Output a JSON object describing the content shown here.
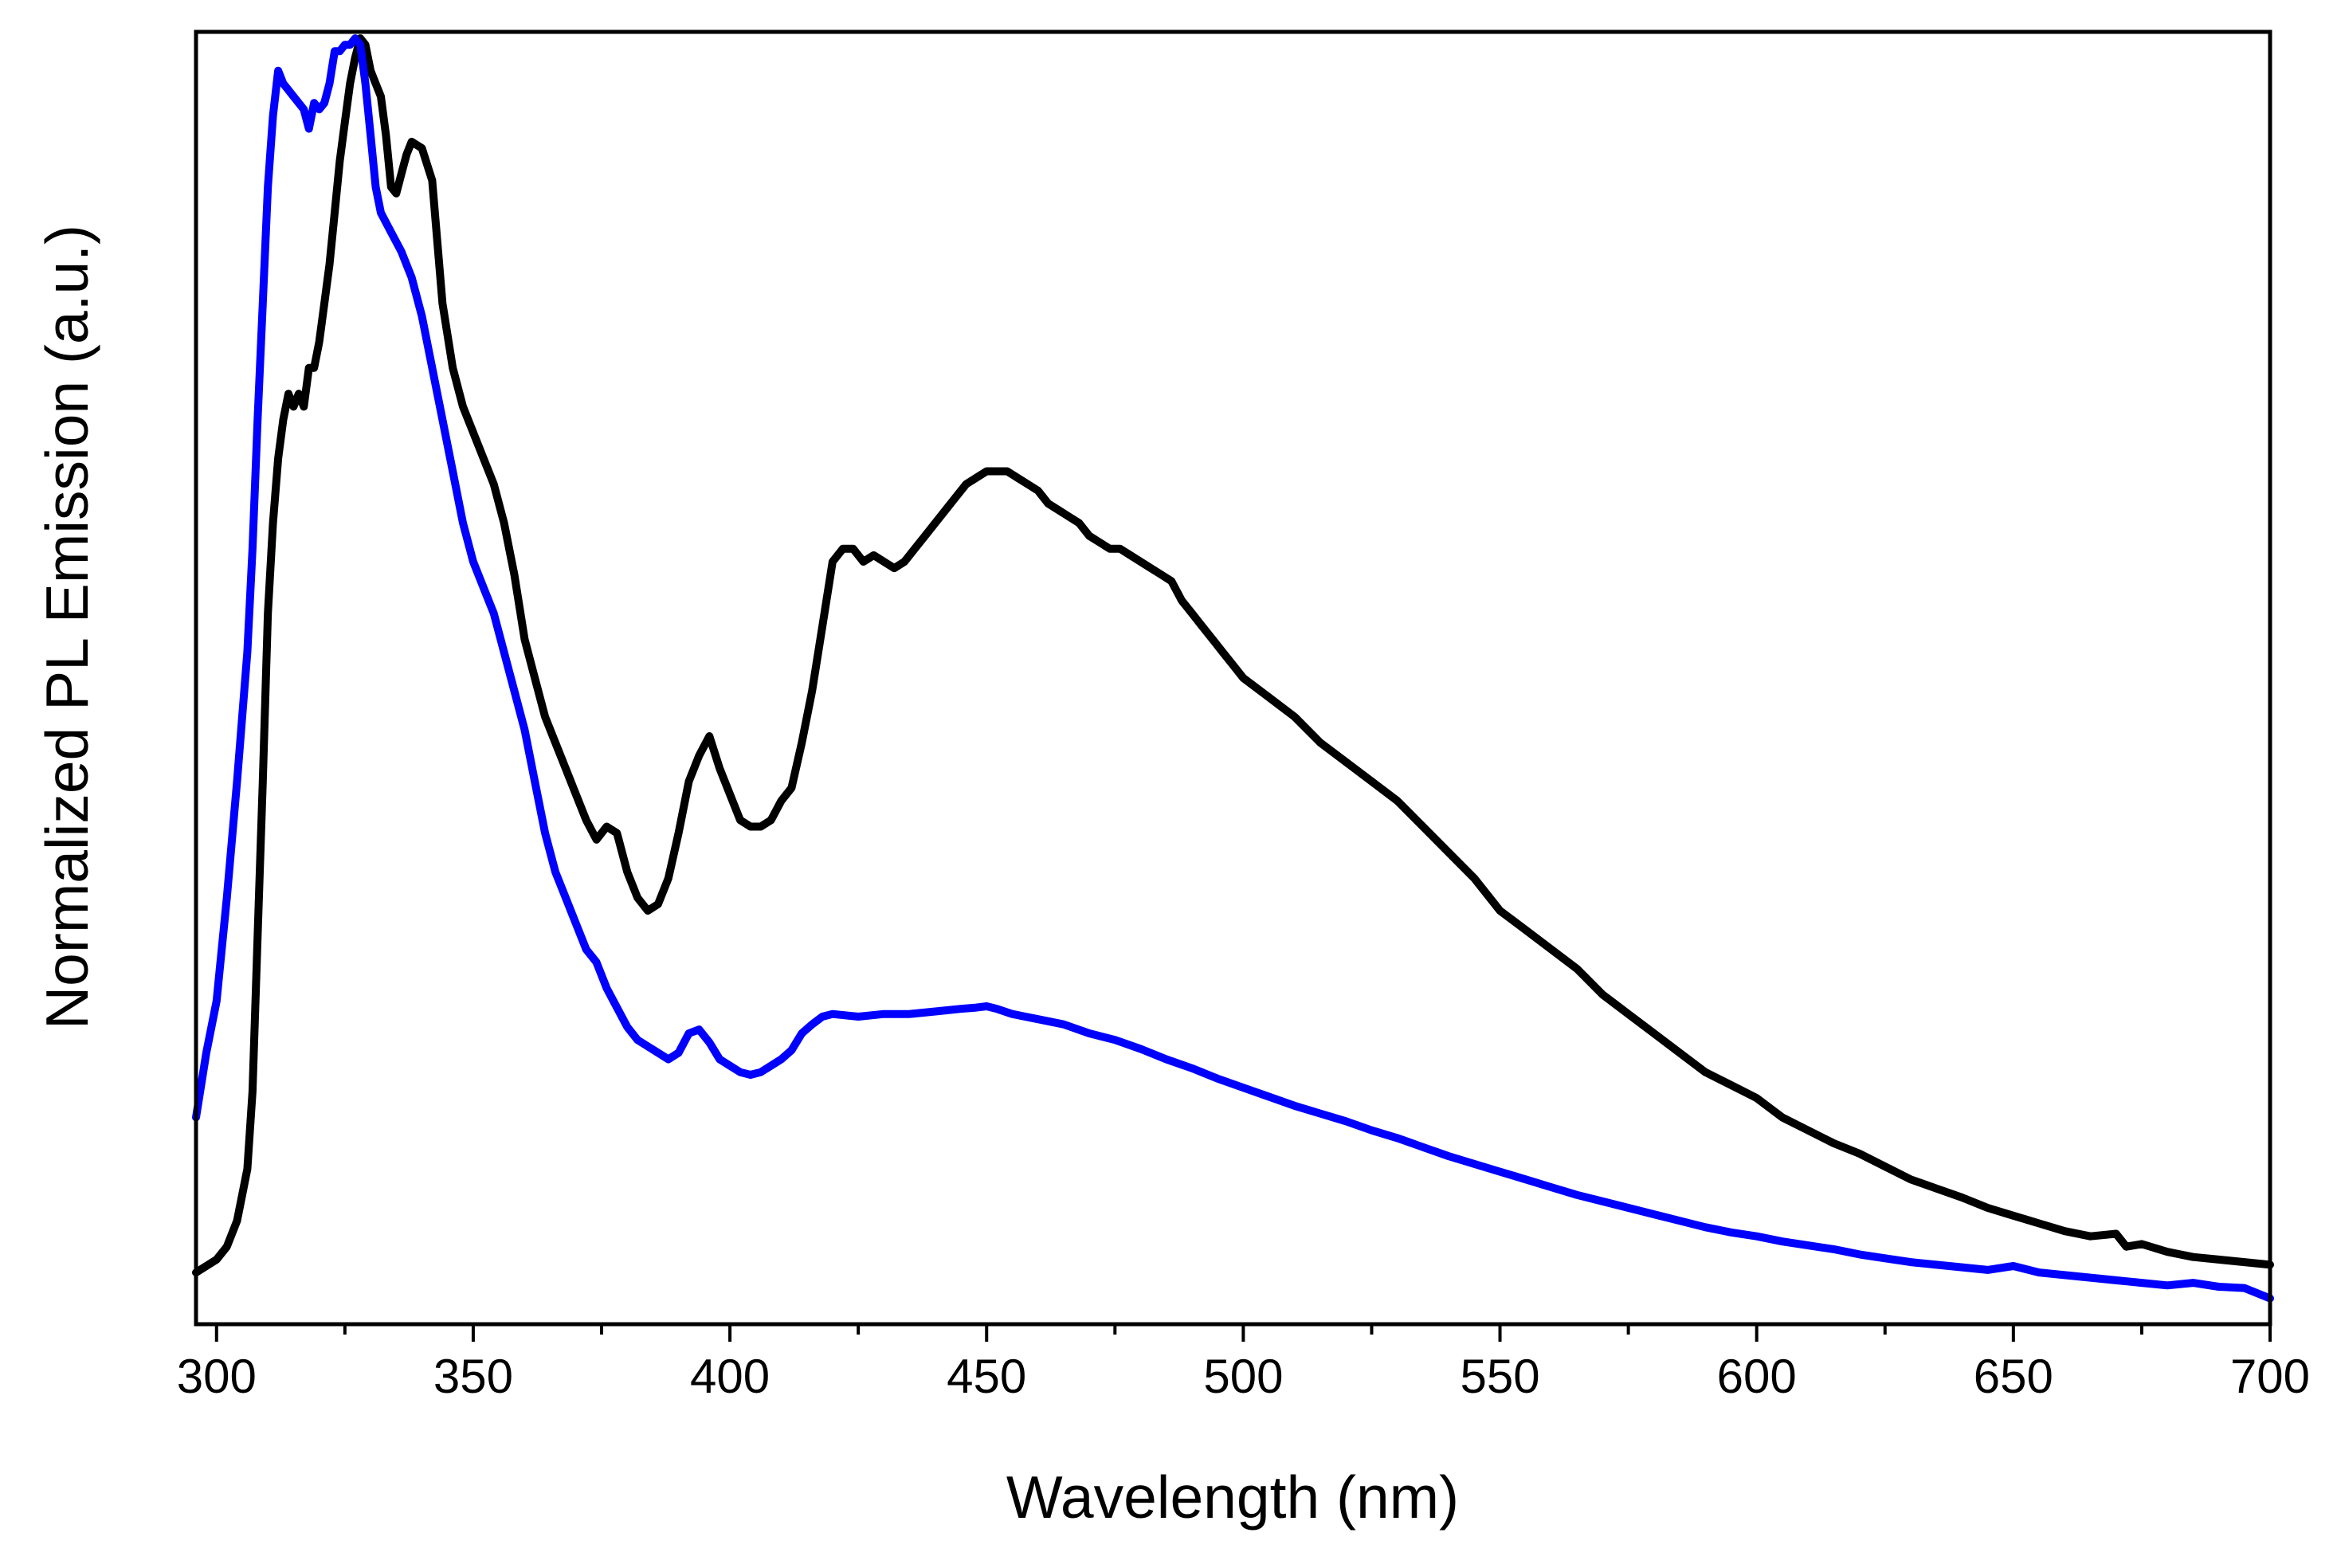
{
  "chart_data": {
    "type": "line",
    "title": "",
    "xlabel": "Wavelength (nm)",
    "ylabel": "Normalized PL Emission (a.u.)",
    "xlim": [
      296,
      700
    ],
    "ylim": [
      0,
      1.0
    ],
    "x_ticks": [
      300,
      350,
      400,
      450,
      500,
      550,
      600,
      650,
      700
    ],
    "x_minor_step": 25,
    "y_ticks_shown": false,
    "grid": false,
    "legend": "none",
    "series": [
      {
        "name": "Black trace",
        "color": "#000000",
        "points": [
          [
            296,
            0.04
          ],
          [
            298,
            0.045
          ],
          [
            300,
            0.05
          ],
          [
            302,
            0.06
          ],
          [
            304,
            0.08
          ],
          [
            306,
            0.12
          ],
          [
            307,
            0.18
          ],
          [
            308,
            0.3
          ],
          [
            309,
            0.42
          ],
          [
            310,
            0.55
          ],
          [
            311,
            0.62
          ],
          [
            312,
            0.67
          ],
          [
            313,
            0.7
          ],
          [
            314,
            0.72
          ],
          [
            315,
            0.71
          ],
          [
            316,
            0.72
          ],
          [
            317,
            0.71
          ],
          [
            318,
            0.74
          ],
          [
            319,
            0.74
          ],
          [
            320,
            0.76
          ],
          [
            321,
            0.79
          ],
          [
            322,
            0.82
          ],
          [
            323,
            0.86
          ],
          [
            324,
            0.9
          ],
          [
            325,
            0.93
          ],
          [
            326,
            0.96
          ],
          [
            327,
            0.98
          ],
          [
            328,
            0.995
          ],
          [
            329,
            0.99
          ],
          [
            330,
            0.97
          ],
          [
            331,
            0.96
          ],
          [
            332,
            0.95
          ],
          [
            333,
            0.92
          ],
          [
            334,
            0.88
          ],
          [
            335,
            0.875
          ],
          [
            336,
            0.89
          ],
          [
            337,
            0.905
          ],
          [
            338,
            0.915
          ],
          [
            340,
            0.91
          ],
          [
            342,
            0.885
          ],
          [
            344,
            0.79
          ],
          [
            346,
            0.74
          ],
          [
            348,
            0.71
          ],
          [
            350,
            0.69
          ],
          [
            352,
            0.67
          ],
          [
            354,
            0.65
          ],
          [
            356,
            0.62
          ],
          [
            358,
            0.58
          ],
          [
            360,
            0.53
          ],
          [
            362,
            0.5
          ],
          [
            364,
            0.47
          ],
          [
            366,
            0.45
          ],
          [
            368,
            0.43
          ],
          [
            370,
            0.41
          ],
          [
            372,
            0.39
          ],
          [
            374,
            0.375
          ],
          [
            376,
            0.385
          ],
          [
            378,
            0.38
          ],
          [
            380,
            0.35
          ],
          [
            382,
            0.33
          ],
          [
            384,
            0.32
          ],
          [
            386,
            0.325
          ],
          [
            388,
            0.345
          ],
          [
            390,
            0.38
          ],
          [
            392,
            0.42
          ],
          [
            394,
            0.44
          ],
          [
            396,
            0.455
          ],
          [
            398,
            0.43
          ],
          [
            400,
            0.41
          ],
          [
            402,
            0.39
          ],
          [
            404,
            0.385
          ],
          [
            406,
            0.385
          ],
          [
            408,
            0.39
          ],
          [
            410,
            0.405
          ],
          [
            412,
            0.415
          ],
          [
            414,
            0.45
          ],
          [
            416,
            0.49
          ],
          [
            418,
            0.54
          ],
          [
            420,
            0.59
          ],
          [
            422,
            0.6
          ],
          [
            424,
            0.6
          ],
          [
            426,
            0.59
          ],
          [
            428,
            0.595
          ],
          [
            430,
            0.59
          ],
          [
            432,
            0.585
          ],
          [
            434,
            0.59
          ],
          [
            436,
            0.6
          ],
          [
            438,
            0.61
          ],
          [
            440,
            0.62
          ],
          [
            442,
            0.63
          ],
          [
            444,
            0.64
          ],
          [
            446,
            0.65
          ],
          [
            448,
            0.655
          ],
          [
            450,
            0.66
          ],
          [
            452,
            0.66
          ],
          [
            454,
            0.66
          ],
          [
            456,
            0.655
          ],
          [
            458,
            0.65
          ],
          [
            460,
            0.645
          ],
          [
            462,
            0.635
          ],
          [
            464,
            0.63
          ],
          [
            466,
            0.625
          ],
          [
            468,
            0.62
          ],
          [
            470,
            0.61
          ],
          [
            472,
            0.605
          ],
          [
            474,
            0.6
          ],
          [
            476,
            0.6
          ],
          [
            478,
            0.595
          ],
          [
            480,
            0.59
          ],
          [
            482,
            0.585
          ],
          [
            484,
            0.58
          ],
          [
            486,
            0.575
          ],
          [
            488,
            0.56
          ],
          [
            490,
            0.55
          ],
          [
            492,
            0.54
          ],
          [
            494,
            0.53
          ],
          [
            496,
            0.52
          ],
          [
            498,
            0.51
          ],
          [
            500,
            0.5
          ],
          [
            505,
            0.485
          ],
          [
            510,
            0.47
          ],
          [
            515,
            0.45
          ],
          [
            520,
            0.435
          ],
          [
            525,
            0.42
          ],
          [
            530,
            0.405
          ],
          [
            535,
            0.385
          ],
          [
            540,
            0.365
          ],
          [
            545,
            0.345
          ],
          [
            550,
            0.32
          ],
          [
            555,
            0.305
          ],
          [
            560,
            0.29
          ],
          [
            565,
            0.275
          ],
          [
            570,
            0.255
          ],
          [
            575,
            0.24
          ],
          [
            580,
            0.225
          ],
          [
            585,
            0.21
          ],
          [
            590,
            0.195
          ],
          [
            595,
            0.185
          ],
          [
            600,
            0.175
          ],
          [
            605,
            0.16
          ],
          [
            610,
            0.15
          ],
          [
            615,
            0.14
          ],
          [
            620,
            0.132
          ],
          [
            625,
            0.122
          ],
          [
            630,
            0.112
          ],
          [
            635,
            0.105
          ],
          [
            640,
            0.098
          ],
          [
            645,
            0.09
          ],
          [
            650,
            0.084
          ],
          [
            655,
            0.078
          ],
          [
            660,
            0.072
          ],
          [
            665,
            0.068
          ],
          [
            670,
            0.07
          ],
          [
            672,
            0.06
          ],
          [
            675,
            0.062
          ],
          [
            680,
            0.056
          ],
          [
            685,
            0.052
          ],
          [
            690,
            0.05
          ],
          [
            695,
            0.048
          ],
          [
            700,
            0.046
          ]
        ]
      },
      {
        "name": "Blue trace",
        "color": "#0000ff",
        "points": [
          [
            296,
            0.16
          ],
          [
            298,
            0.21
          ],
          [
            300,
            0.25
          ],
          [
            302,
            0.33
          ],
          [
            304,
            0.42
          ],
          [
            306,
            0.52
          ],
          [
            307,
            0.6
          ],
          [
            308,
            0.7
          ],
          [
            309,
            0.79
          ],
          [
            310,
            0.88
          ],
          [
            311,
            0.935
          ],
          [
            312,
            0.97
          ],
          [
            313,
            0.96
          ],
          [
            314,
            0.955
          ],
          [
            315,
            0.95
          ],
          [
            316,
            0.945
          ],
          [
            317,
            0.94
          ],
          [
            318,
            0.925
          ],
          [
            319,
            0.945
          ],
          [
            320,
            0.94
          ],
          [
            321,
            0.945
          ],
          [
            322,
            0.96
          ],
          [
            323,
            0.985
          ],
          [
            324,
            0.985
          ],
          [
            325,
            0.99
          ],
          [
            326,
            0.99
          ],
          [
            327,
            0.995
          ],
          [
            328,
            0.99
          ],
          [
            329,
            0.96
          ],
          [
            330,
            0.92
          ],
          [
            331,
            0.88
          ],
          [
            332,
            0.86
          ],
          [
            334,
            0.845
          ],
          [
            336,
            0.83
          ],
          [
            338,
            0.81
          ],
          [
            340,
            0.78
          ],
          [
            342,
            0.74
          ],
          [
            344,
            0.7
          ],
          [
            346,
            0.66
          ],
          [
            348,
            0.62
          ],
          [
            350,
            0.59
          ],
          [
            352,
            0.57
          ],
          [
            354,
            0.55
          ],
          [
            356,
            0.52
          ],
          [
            358,
            0.49
          ],
          [
            360,
            0.46
          ],
          [
            362,
            0.42
          ],
          [
            364,
            0.38
          ],
          [
            366,
            0.35
          ],
          [
            368,
            0.33
          ],
          [
            370,
            0.31
          ],
          [
            372,
            0.29
          ],
          [
            374,
            0.28
          ],
          [
            376,
            0.26
          ],
          [
            378,
            0.245
          ],
          [
            380,
            0.23
          ],
          [
            382,
            0.22
          ],
          [
            384,
            0.215
          ],
          [
            386,
            0.21
          ],
          [
            388,
            0.205
          ],
          [
            390,
            0.21
          ],
          [
            392,
            0.225
          ],
          [
            394,
            0.228
          ],
          [
            396,
            0.218
          ],
          [
            398,
            0.205
          ],
          [
            400,
            0.2
          ],
          [
            402,
            0.195
          ],
          [
            404,
            0.193
          ],
          [
            406,
            0.195
          ],
          [
            408,
            0.2
          ],
          [
            410,
            0.205
          ],
          [
            412,
            0.212
          ],
          [
            414,
            0.225
          ],
          [
            416,
            0.232
          ],
          [
            418,
            0.238
          ],
          [
            420,
            0.24
          ],
          [
            425,
            0.238
          ],
          [
            430,
            0.24
          ],
          [
            435,
            0.24
          ],
          [
            440,
            0.242
          ],
          [
            445,
            0.244
          ],
          [
            448,
            0.245
          ],
          [
            450,
            0.246
          ],
          [
            452,
            0.244
          ],
          [
            455,
            0.24
          ],
          [
            460,
            0.236
          ],
          [
            465,
            0.232
          ],
          [
            470,
            0.225
          ],
          [
            475,
            0.22
          ],
          [
            480,
            0.213
          ],
          [
            485,
            0.205
          ],
          [
            490,
            0.198
          ],
          [
            495,
            0.19
          ],
          [
            500,
            0.183
          ],
          [
            505,
            0.176
          ],
          [
            510,
            0.169
          ],
          [
            515,
            0.163
          ],
          [
            520,
            0.157
          ],
          [
            525,
            0.15
          ],
          [
            530,
            0.144
          ],
          [
            535,
            0.137
          ],
          [
            540,
            0.13
          ],
          [
            545,
            0.124
          ],
          [
            550,
            0.118
          ],
          [
            555,
            0.112
          ],
          [
            560,
            0.106
          ],
          [
            565,
            0.1
          ],
          [
            570,
            0.095
          ],
          [
            575,
            0.09
          ],
          [
            580,
            0.085
          ],
          [
            585,
            0.08
          ],
          [
            590,
            0.075
          ],
          [
            595,
            0.071
          ],
          [
            600,
            0.068
          ],
          [
            605,
            0.064
          ],
          [
            610,
            0.061
          ],
          [
            615,
            0.058
          ],
          [
            620,
            0.054
          ],
          [
            625,
            0.051
          ],
          [
            630,
            0.048
          ],
          [
            635,
            0.046
          ],
          [
            640,
            0.044
          ],
          [
            645,
            0.042
          ],
          [
            650,
            0.045
          ],
          [
            655,
            0.04
          ],
          [
            660,
            0.038
          ],
          [
            665,
            0.036
          ],
          [
            670,
            0.034
          ],
          [
            675,
            0.032
          ],
          [
            680,
            0.03
          ],
          [
            685,
            0.032
          ],
          [
            690,
            0.029
          ],
          [
            695,
            0.028
          ],
          [
            700,
            0.02
          ]
        ]
      }
    ]
  }
}
